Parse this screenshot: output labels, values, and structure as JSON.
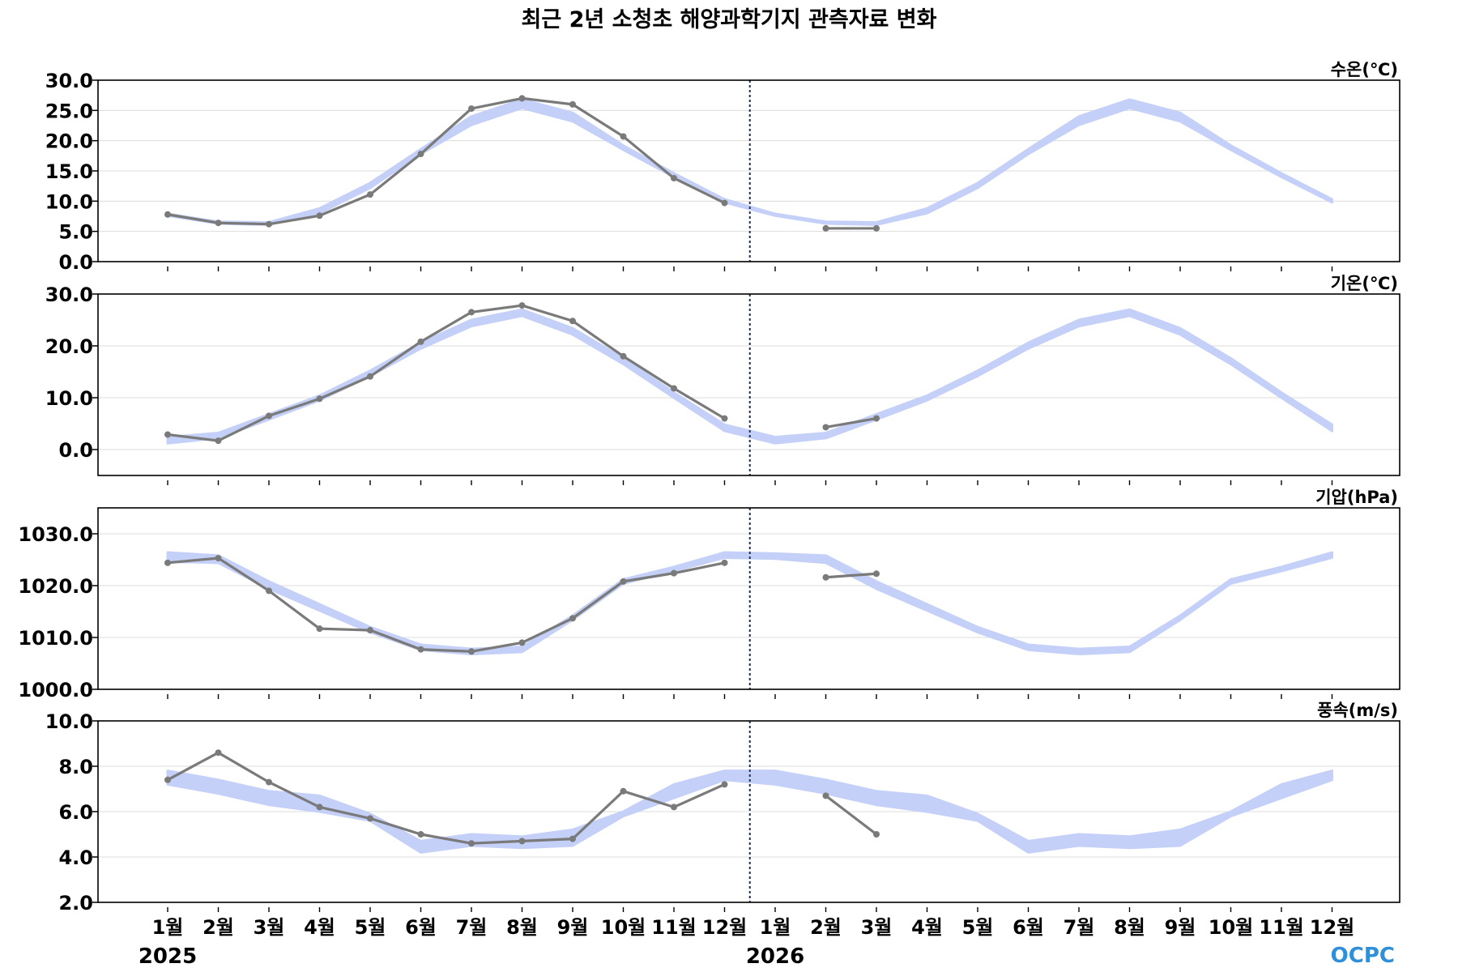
{
  "title": "최근 2년 소청초 해양과학기지 관측자료 변화",
  "logo": "OCPC",
  "colors": {
    "band": "#c4d0f7",
    "observed": "#7a7a7a",
    "divider": "#1f2f55",
    "grid": "#dcdcdc",
    "frame": "#000000"
  },
  "x_axis": {
    "tick_labels": [
      "1월",
      "2월",
      "3월",
      "4월",
      "5월",
      "6월",
      "7월",
      "8월",
      "9월",
      "10월",
      "11월",
      "12월",
      "1월",
      "2월",
      "3월",
      "4월",
      "5월",
      "6월",
      "7월",
      "8월",
      "9월",
      "10월",
      "11월",
      "12월"
    ],
    "years": [
      {
        "label": "2025",
        "index": 0
      },
      {
        "label": "2026",
        "index": 12
      }
    ],
    "divider_after_index": 11
  },
  "chart_data": [
    {
      "type": "line",
      "panel_label": "수온(℃)",
      "ylim": [
        0,
        30
      ],
      "yticks": [
        0,
        5,
        10,
        15,
        20,
        25,
        30
      ],
      "ytick_labels": [
        "0.0",
        "5.0",
        "10.0",
        "15.0",
        "20.0",
        "25.0",
        "30.0"
      ],
      "grid": true,
      "series": [
        {
          "kind": "band",
          "x": [
            0,
            1,
            2,
            3,
            4,
            5,
            6,
            7,
            8,
            9,
            10,
            11,
            12,
            13,
            14,
            15,
            16,
            17,
            18,
            19,
            20,
            21,
            22,
            23
          ],
          "lower": [
            7.6,
            6.3,
            6.1,
            8.0,
            12.2,
            17.8,
            22.6,
            25.4,
            23.2,
            18.5,
            14.0,
            9.8,
            7.6,
            6.3,
            6.1,
            8.0,
            12.2,
            17.8,
            22.6,
            25.4,
            23.2,
            18.5,
            14.0,
            9.8
          ],
          "upper": [
            7.9,
            6.6,
            6.5,
            8.8,
            13.0,
            18.6,
            24.0,
            26.8,
            24.6,
            19.2,
            14.6,
            10.3,
            7.9,
            6.6,
            6.5,
            8.8,
            13.0,
            18.6,
            24.0,
            26.8,
            24.6,
            19.2,
            14.6,
            10.3
          ]
        },
        {
          "kind": "observed",
          "x": [
            0,
            1,
            2,
            3,
            4,
            5,
            6,
            7,
            8,
            9,
            10,
            11
          ],
          "values": [
            7.8,
            6.4,
            6.2,
            7.6,
            11.1,
            17.8,
            25.3,
            27.0,
            26.0,
            20.7,
            13.8,
            9.7
          ]
        },
        {
          "kind": "observed",
          "x": [
            13,
            14
          ],
          "values": [
            5.5,
            5.5
          ]
        }
      ]
    },
    {
      "type": "line",
      "panel_label": "기온(℃)",
      "ylim": [
        -5,
        30
      ],
      "yticks": [
        0,
        10,
        20,
        30
      ],
      "ytick_labels": [
        "0.0",
        "10.0",
        "20.0",
        "30.0"
      ],
      "grid": true,
      "series": [
        {
          "kind": "band",
          "x": [
            0,
            1,
            2,
            3,
            4,
            5,
            6,
            7,
            8,
            9,
            10,
            11,
            12,
            13,
            14,
            15,
            16,
            17,
            18,
            19,
            20,
            21,
            22,
            23
          ],
          "lower": [
            1.2,
            2.2,
            5.8,
            9.5,
            14.2,
            19.5,
            23.8,
            25.8,
            22.2,
            16.5,
            10.0,
            3.6,
            1.2,
            2.2,
            5.8,
            9.5,
            14.2,
            19.5,
            23.8,
            25.8,
            22.2,
            16.5,
            10.0,
            3.6
          ],
          "upper": [
            2.4,
            3.2,
            6.8,
            10.4,
            15.2,
            20.6,
            25.0,
            27.0,
            23.4,
            17.6,
            11.0,
            4.8,
            2.4,
            3.2,
            6.8,
            10.4,
            15.2,
            20.6,
            25.0,
            27.0,
            23.4,
            17.6,
            11.0,
            4.8
          ]
        },
        {
          "kind": "observed",
          "x": [
            0,
            1,
            2,
            3,
            4,
            5,
            6,
            7,
            8,
            9,
            10,
            11
          ],
          "values": [
            2.9,
            1.7,
            6.5,
            9.8,
            14.1,
            20.8,
            26.5,
            27.8,
            24.8,
            18.0,
            11.8,
            6.0
          ]
        },
        {
          "kind": "observed",
          "x": [
            13,
            14
          ],
          "values": [
            4.3,
            6.0
          ]
        }
      ]
    },
    {
      "type": "line",
      "panel_label": "기압(hPa)",
      "ylim": [
        1000,
        1035
      ],
      "yticks": [
        1000,
        1010,
        1020,
        1030
      ],
      "ytick_labels": [
        "1000.0",
        "1010.0",
        "1020.0",
        "1030.0"
      ],
      "grid": true,
      "series": [
        {
          "kind": "band",
          "x": [
            0,
            1,
            2,
            3,
            4,
            5,
            6,
            7,
            8,
            9,
            10,
            11,
            12,
            13,
            14,
            15,
            16,
            17,
            18,
            19,
            20,
            21,
            22,
            23
          ],
          "lower": [
            1024.6,
            1024.4,
            1019.4,
            1015.2,
            1011.0,
            1007.6,
            1006.8,
            1007.2,
            1013.4,
            1020.4,
            1022.8,
            1025.4,
            1025.2,
            1024.4,
            1019.4,
            1015.2,
            1011.0,
            1007.6,
            1006.8,
            1007.2,
            1013.4,
            1020.4,
            1022.8,
            1025.4
          ],
          "upper": [
            1026.4,
            1025.8,
            1020.8,
            1016.4,
            1012.0,
            1008.6,
            1007.8,
            1008.2,
            1014.2,
            1021.2,
            1023.6,
            1026.4,
            1026.2,
            1025.8,
            1020.8,
            1016.4,
            1012.0,
            1008.6,
            1007.8,
            1008.2,
            1014.2,
            1021.2,
            1023.6,
            1026.4
          ]
        },
        {
          "kind": "observed",
          "x": [
            0,
            1,
            2,
            3,
            4,
            5,
            6,
            7,
            8,
            9,
            10,
            11
          ],
          "values": [
            1024.4,
            1025.3,
            1019.0,
            1011.7,
            1011.4,
            1007.7,
            1007.3,
            1009.0,
            1013.7,
            1020.8,
            1022.4,
            1024.4
          ]
        },
        {
          "kind": "observed",
          "x": [
            13,
            14
          ],
          "values": [
            1021.6,
            1022.3
          ]
        }
      ]
    },
    {
      "type": "line",
      "panel_label": "풍속(m/s)",
      "ylim": [
        2,
        10
      ],
      "yticks": [
        2,
        4,
        6,
        8,
        10
      ],
      "ytick_labels": [
        "2.0",
        "4.0",
        "6.0",
        "8.0",
        "10.0"
      ],
      "grid": true,
      "series": [
        {
          "kind": "band",
          "x": [
            0,
            1,
            2,
            3,
            4,
            5,
            6,
            7,
            8,
            9,
            10,
            11,
            12,
            13,
            14,
            15,
            16,
            17,
            18,
            19,
            20,
            21,
            22,
            23
          ],
          "lower": [
            7.2,
            6.8,
            6.3,
            6.0,
            5.6,
            4.2,
            4.5,
            4.4,
            4.5,
            5.8,
            6.6,
            7.4,
            7.2,
            6.8,
            6.3,
            6.0,
            5.6,
            4.2,
            4.5,
            4.4,
            4.5,
            5.8,
            6.6,
            7.4
          ],
          "upper": [
            7.8,
            7.4,
            6.9,
            6.7,
            5.9,
            4.7,
            5.0,
            4.9,
            5.2,
            6.0,
            7.2,
            7.8,
            7.8,
            7.4,
            6.9,
            6.7,
            5.9,
            4.7,
            5.0,
            4.9,
            5.2,
            6.0,
            7.2,
            7.8
          ]
        },
        {
          "kind": "observed",
          "x": [
            0,
            1,
            2,
            3,
            4,
            5,
            6,
            7,
            8,
            9,
            10,
            11
          ],
          "values": [
            7.4,
            8.6,
            7.3,
            6.2,
            5.7,
            5.0,
            4.6,
            4.7,
            4.8,
            6.9,
            6.2,
            7.2
          ]
        },
        {
          "kind": "observed",
          "x": [
            13,
            14
          ],
          "values": [
            6.7,
            5.0
          ]
        }
      ]
    }
  ]
}
